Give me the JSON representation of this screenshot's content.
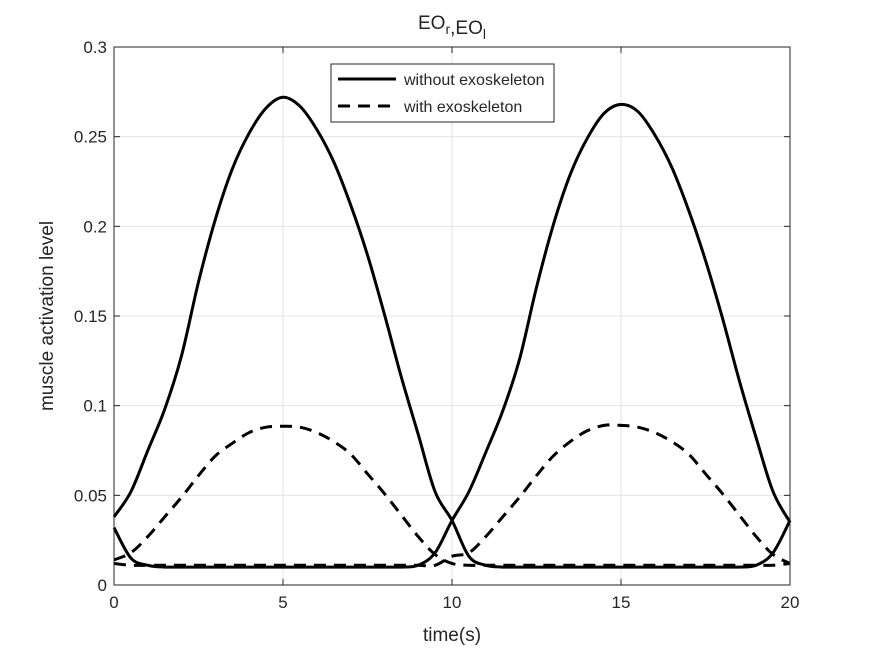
{
  "chart_data": {
    "type": "line",
    "title": "EO_r,EO_l",
    "xlabel": "time(s)",
    "ylabel": "muscle activation level",
    "xlim": [
      0,
      20
    ],
    "ylim": [
      0,
      0.3
    ],
    "xticks": [
      0,
      5,
      10,
      15,
      20
    ],
    "xtick_labels": [
      "0",
      "5",
      "10",
      "15",
      "20"
    ],
    "yticks": [
      0,
      0.05,
      0.1,
      0.15,
      0.2,
      0.25,
      0.3
    ],
    "ytick_labels": [
      "0",
      "0.05",
      "0.1",
      "0.15",
      "0.2",
      "0.25",
      "0.3"
    ],
    "grid": true,
    "legend_position": "top-center",
    "legend": [
      {
        "label": "without exoskeleton",
        "style": "solid"
      },
      {
        "label": "with exoskeleton",
        "style": "dashed"
      }
    ],
    "color": "#000000",
    "x": [
      0,
      0.5,
      1,
      1.5,
      2,
      2.5,
      3,
      3.5,
      4,
      4.5,
      5,
      5.5,
      6,
      6.5,
      7,
      7.5,
      8,
      8.5,
      9,
      9.5,
      10,
      10.5,
      11,
      11.5,
      12,
      12.5,
      13,
      13.5,
      14,
      14.5,
      15,
      15.5,
      16,
      16.5,
      17,
      17.5,
      18,
      18.5,
      19,
      19.5,
      20
    ],
    "series": [
      {
        "name": "without exoskeleton",
        "style": "solid",
        "values": [
          0.038,
          0.052,
          0.075,
          0.098,
          0.128,
          0.169,
          0.204,
          0.232,
          0.252,
          0.266,
          0.272,
          0.267,
          0.254,
          0.236,
          0.212,
          0.184,
          0.151,
          0.116,
          0.084,
          0.052,
          0.036,
          0.016,
          0.011,
          0.01,
          0.01,
          0.01,
          0.01,
          0.01,
          0.01,
          0.01,
          0.01,
          0.01,
          0.01,
          0.01,
          0.01,
          0.01,
          0.01,
          0.01,
          0.011,
          0.018,
          0.036
        ]
      },
      {
        "name": "without exoskeleton",
        "style": "solid",
        "values": [
          0.032,
          0.015,
          0.011,
          0.01,
          0.01,
          0.01,
          0.01,
          0.01,
          0.01,
          0.01,
          0.01,
          0.01,
          0.01,
          0.01,
          0.01,
          0.01,
          0.01,
          0.01,
          0.011,
          0.018,
          0.036,
          0.052,
          0.074,
          0.097,
          0.126,
          0.166,
          0.201,
          0.229,
          0.249,
          0.263,
          0.268,
          0.264,
          0.251,
          0.233,
          0.209,
          0.181,
          0.149,
          0.114,
          0.082,
          0.052,
          0.035
        ]
      },
      {
        "name": "with exoskeleton",
        "style": "dashed",
        "values": [
          0.014,
          0.018,
          0.027,
          0.038,
          0.049,
          0.061,
          0.072,
          0.079,
          0.085,
          0.088,
          0.0885,
          0.088,
          0.085,
          0.08,
          0.073,
          0.062,
          0.051,
          0.039,
          0.027,
          0.017,
          0.012,
          0.011,
          0.011,
          0.011,
          0.011,
          0.011,
          0.011,
          0.011,
          0.011,
          0.011,
          0.011,
          0.011,
          0.011,
          0.011,
          0.011,
          0.011,
          0.011,
          0.011,
          0.011,
          0.011,
          0.012
        ]
      },
      {
        "name": "with exoskeleton",
        "style": "dashed",
        "values": [
          0.012,
          0.011,
          0.011,
          0.011,
          0.011,
          0.011,
          0.011,
          0.011,
          0.011,
          0.011,
          0.011,
          0.011,
          0.011,
          0.011,
          0.011,
          0.011,
          0.011,
          0.011,
          0.011,
          0.011,
          0.016,
          0.018,
          0.027,
          0.038,
          0.049,
          0.061,
          0.072,
          0.08,
          0.086,
          0.089,
          0.089,
          0.088,
          0.085,
          0.08,
          0.073,
          0.062,
          0.051,
          0.039,
          0.027,
          0.017,
          0.012
        ]
      }
    ]
  }
}
